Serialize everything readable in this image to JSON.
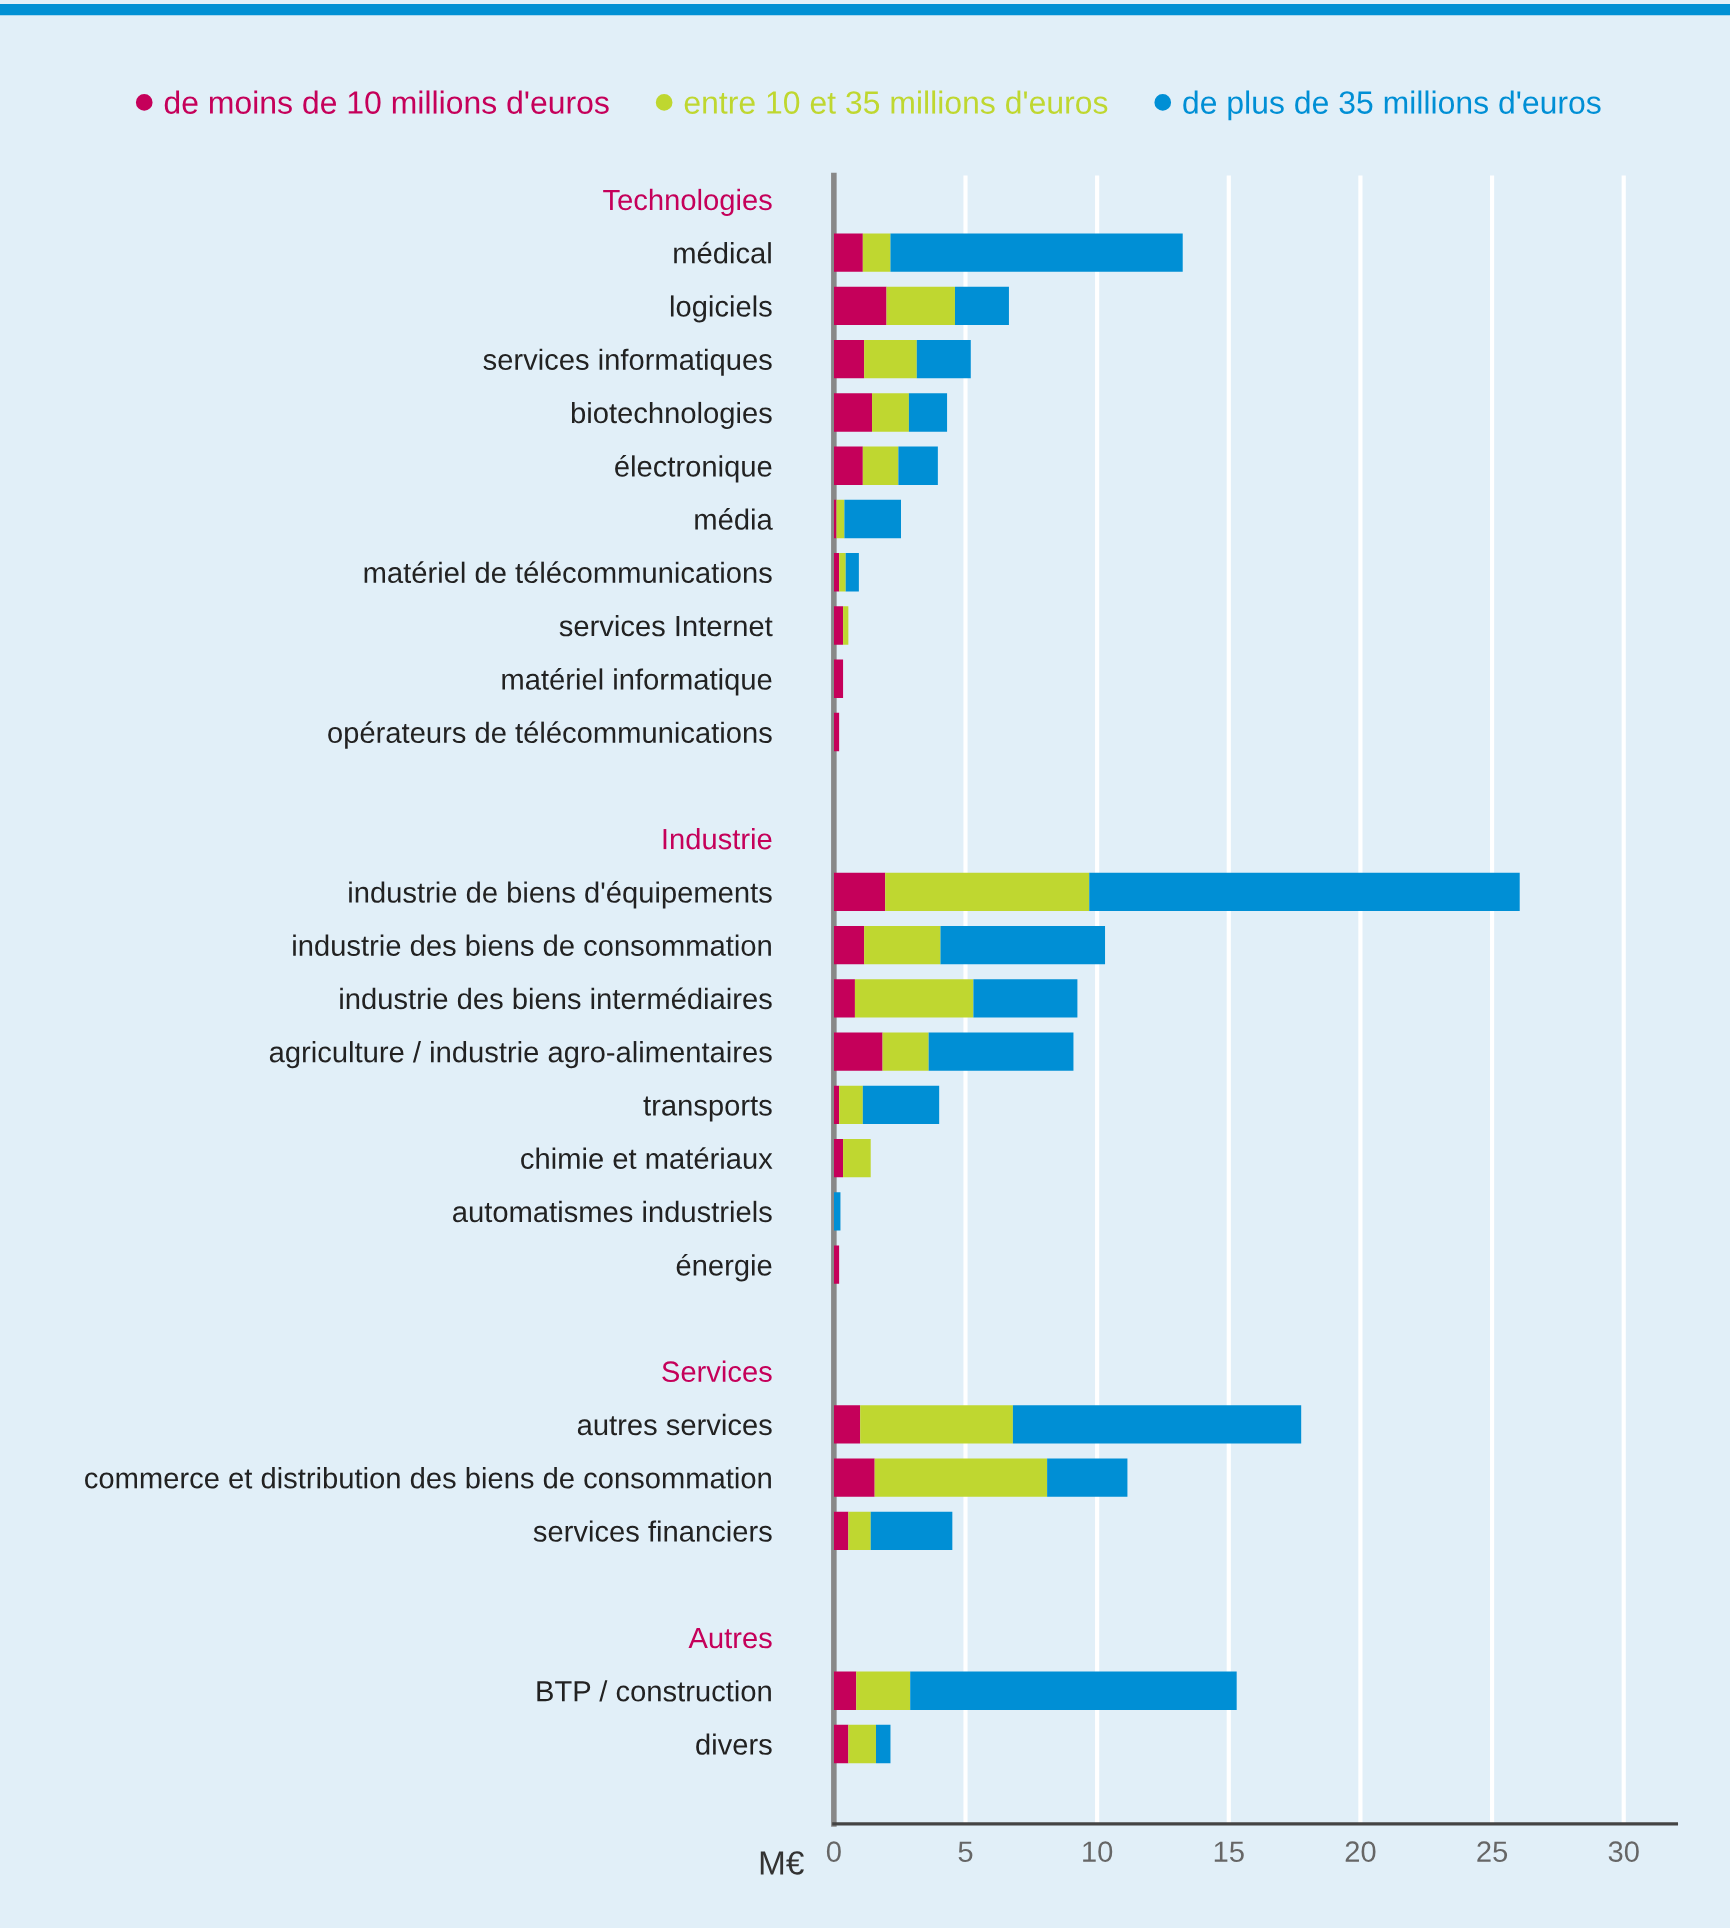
{
  "chart_data": {
    "type": "bar",
    "orientation": "horizontal",
    "stacked": true,
    "categories": [
      "Technologies",
      "médical",
      "logiciels",
      "services informatiques",
      "biotechnologies",
      "électronique",
      "média",
      "matériel de télécommunications",
      "services Internet",
      "matériel informatique",
      "opérateurs de télécommunications",
      null,
      "Industrie",
      "industrie de biens d'équipements",
      "industrie des biens de consommation",
      "industrie des biens intermédiaires",
      "agriculture / industrie agro-alimentaires",
      "transports",
      "chimie et matériaux",
      "automatismes industriels",
      "énergie",
      null,
      "Services",
      "autres services",
      "commerce et distribution des biens de consommation",
      "services financiers",
      null,
      "Autres",
      "BTP / construction",
      "divers"
    ],
    "series": [
      {
        "name": "de moins de 10 millions d'euros",
        "color": "#c5005a",
        "values": [
          null,
          1.1,
          2.0,
          1.15,
          1.45,
          1.1,
          0.1,
          0.2,
          0.35,
          0.35,
          0.2,
          null,
          null,
          1.95,
          1.15,
          0.8,
          1.85,
          0.2,
          0.35,
          null,
          0.2,
          null,
          null,
          1.0,
          1.55,
          0.55,
          null,
          null,
          0.85,
          0.55
        ]
      },
      {
        "name": "entre 10 et 35 millions d'euros",
        "color": "#bfd730",
        "values": [
          null,
          1.05,
          2.6,
          2.0,
          1.4,
          1.35,
          0.3,
          0.25,
          0.2,
          null,
          null,
          null,
          null,
          7.75,
          2.9,
          4.5,
          1.75,
          0.9,
          1.05,
          null,
          null,
          null,
          null,
          5.8,
          6.55,
          0.85,
          null,
          null,
          2.05,
          1.05
        ]
      },
      {
        "name": "de plus de 35 millions d'euros",
        "color": "#008fd5",
        "values": [
          null,
          11.1,
          2.05,
          2.05,
          1.45,
          1.5,
          2.15,
          0.5,
          null,
          null,
          null,
          null,
          null,
          16.35,
          6.25,
          3.95,
          5.5,
          2.9,
          null,
          0.25,
          null,
          null,
          null,
          10.95,
          3.05,
          3.1,
          null,
          null,
          12.4,
          0.55
        ]
      }
    ],
    "xlabel": "M€",
    "xlim": [
      0,
      32
    ],
    "xticks": [
      0,
      5,
      10,
      15,
      20,
      25,
      30
    ],
    "grid": "x",
    "legend": "top"
  }
}
